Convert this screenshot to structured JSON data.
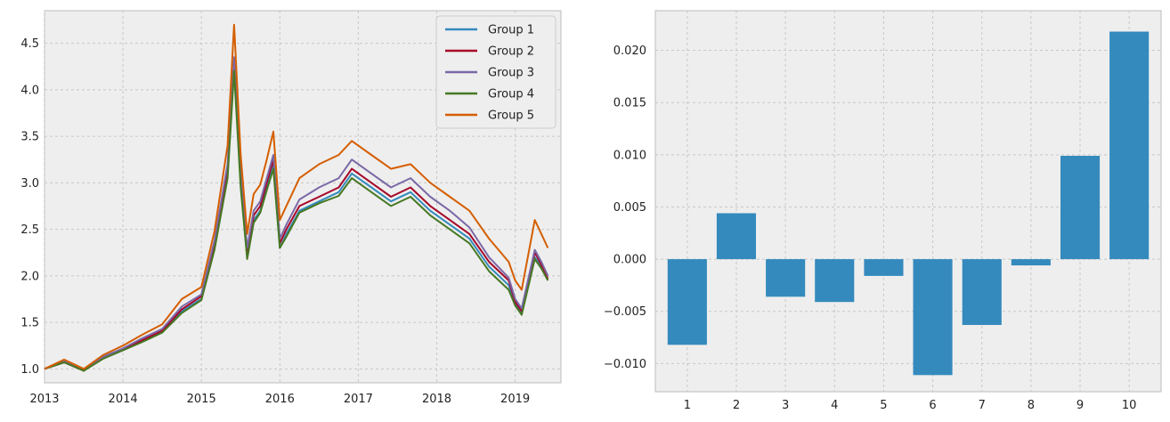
{
  "chart_data": [
    {
      "type": "line",
      "title": "",
      "xlabel": "",
      "ylabel": "",
      "x_ticks": [
        "2013",
        "2014",
        "2015",
        "2016",
        "2017",
        "2018",
        "2019"
      ],
      "y_ticks": [
        "1.0",
        "1.5",
        "2.0",
        "2.5",
        "3.0",
        "3.5",
        "4.0",
        "4.5"
      ],
      "xlim": [
        "2013-01",
        "2019-08"
      ],
      "ylim": [
        0.85,
        4.85
      ],
      "grid": true,
      "legend_position": "top-right",
      "x": [
        "2013-01",
        "2013-04",
        "2013-07",
        "2013-10",
        "2014-01",
        "2014-04",
        "2014-07",
        "2014-10",
        "2015-01",
        "2015-03",
        "2015-05",
        "2015-06",
        "2015-07",
        "2015-08",
        "2015-09",
        "2015-10",
        "2015-11",
        "2015-12",
        "2016-01",
        "2016-02",
        "2016-04",
        "2016-07",
        "2016-10",
        "2016-12",
        "2017-03",
        "2017-06",
        "2017-09",
        "2017-12",
        "2018-03",
        "2018-06",
        "2018-09",
        "2018-12",
        "2019-01",
        "2019-02",
        "2019-04",
        "2019-05",
        "2019-06"
      ],
      "series": [
        {
          "name": "Group 1",
          "color": "#348ABD",
          "values": [
            1.0,
            1.08,
            0.98,
            1.12,
            1.2,
            1.3,
            1.4,
            1.62,
            1.75,
            2.3,
            3.1,
            4.25,
            3.0,
            2.2,
            2.6,
            2.7,
            2.95,
            3.2,
            2.3,
            2.45,
            2.7,
            2.8,
            2.9,
            3.1,
            2.95,
            2.8,
            2.9,
            2.7,
            2.55,
            2.4,
            2.1,
            1.9,
            1.7,
            1.6,
            2.2,
            2.1,
            1.95
          ]
        },
        {
          "name": "Group 2",
          "color": "#A60628",
          "values": [
            1.0,
            1.07,
            0.98,
            1.12,
            1.21,
            1.31,
            1.41,
            1.64,
            1.78,
            2.35,
            3.15,
            4.3,
            3.05,
            2.25,
            2.65,
            2.75,
            3.0,
            3.25,
            2.35,
            2.5,
            2.75,
            2.85,
            2.95,
            3.15,
            3.0,
            2.85,
            2.95,
            2.75,
            2.6,
            2.45,
            2.15,
            1.95,
            1.72,
            1.62,
            2.25,
            2.12,
            1.97
          ]
        },
        {
          "name": "Group 3",
          "color": "#7A68A6",
          "values": [
            1.0,
            1.08,
            0.99,
            1.13,
            1.22,
            1.33,
            1.43,
            1.67,
            1.8,
            2.38,
            3.2,
            4.35,
            3.1,
            2.3,
            2.7,
            2.8,
            3.05,
            3.3,
            2.4,
            2.55,
            2.82,
            2.95,
            3.05,
            3.25,
            3.1,
            2.95,
            3.05,
            2.85,
            2.7,
            2.52,
            2.2,
            1.98,
            1.75,
            1.65,
            2.28,
            2.15,
            2.0
          ]
        },
        {
          "name": "Group 4",
          "color": "#467821",
          "values": [
            1.0,
            1.07,
            0.98,
            1.11,
            1.2,
            1.29,
            1.39,
            1.6,
            1.74,
            2.28,
            3.05,
            4.2,
            2.95,
            2.18,
            2.57,
            2.68,
            2.92,
            3.15,
            2.3,
            2.42,
            2.68,
            2.78,
            2.86,
            3.05,
            2.9,
            2.75,
            2.85,
            2.65,
            2.5,
            2.35,
            2.05,
            1.85,
            1.68,
            1.58,
            2.18,
            2.08,
            1.95
          ]
        },
        {
          "name": "Group 5",
          "color": "#D55E00",
          "values": [
            1.0,
            1.1,
            1.0,
            1.15,
            1.25,
            1.37,
            1.48,
            1.75,
            1.88,
            2.48,
            3.4,
            4.7,
            3.3,
            2.45,
            2.88,
            2.98,
            3.25,
            3.55,
            2.6,
            2.75,
            3.05,
            3.2,
            3.3,
            3.45,
            3.3,
            3.15,
            3.2,
            3.0,
            2.85,
            2.7,
            2.4,
            2.15,
            1.95,
            1.85,
            2.6,
            2.45,
            2.3
          ]
        }
      ]
    },
    {
      "type": "bar",
      "title": "",
      "xlabel": "",
      "ylabel": "",
      "categories": [
        "1",
        "2",
        "3",
        "4",
        "5",
        "6",
        "7",
        "8",
        "9",
        "10"
      ],
      "values": [
        -0.0082,
        0.0044,
        -0.0036,
        -0.0041,
        -0.0016,
        -0.0111,
        -0.0063,
        -0.0006,
        0.0099,
        0.0218
      ],
      "y_ticks": [
        "−0.010",
        "−0.005",
        "0.000",
        "0.005",
        "0.010",
        "0.015",
        "0.020"
      ],
      "ylim": [
        -0.0127,
        0.0238
      ],
      "grid": true,
      "bar_color": "#348ABD"
    }
  ]
}
